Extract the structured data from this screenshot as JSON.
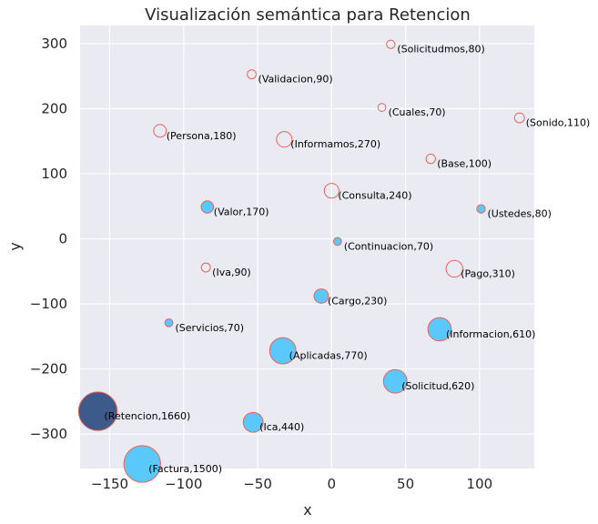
{
  "chart_data": {
    "type": "scatter",
    "title": "Visualización semántica para Retencion",
    "xlabel": "x",
    "ylabel": "y",
    "xlim": [
      -170,
      137
    ],
    "ylim": [
      -353,
      328
    ],
    "xticks": [
      -150,
      -100,
      -50,
      0,
      50,
      100
    ],
    "yticks": [
      -300,
      -200,
      -100,
      0,
      100,
      200,
      300
    ],
    "xtick_labels": [
      "−150",
      "−100",
      "−50",
      "0",
      "50",
      "100"
    ],
    "ytick_labels": [
      "−300",
      "−200",
      "−100",
      "0",
      "100",
      "200",
      "300"
    ],
    "grid": true,
    "background": "#EAEAF2",
    "colors": {
      "filled": "#5AC8FA",
      "highlight": "#3D5A8A",
      "edge": "#E8645A",
      "hollow": "none"
    },
    "points": [
      {
        "label": "(Solicitudmos,80)",
        "x": 40,
        "y": 299,
        "size": 80,
        "style": "hollow"
      },
      {
        "label": "(Validacion,90)",
        "x": -54,
        "y": 253,
        "size": 90,
        "style": "hollow"
      },
      {
        "label": "(Cuales,70)",
        "x": 34,
        "y": 202,
        "size": 70,
        "style": "hollow"
      },
      {
        "label": "(Sonido,110)",
        "x": 127,
        "y": 186,
        "size": 110,
        "style": "hollow"
      },
      {
        "label": "(Persona,180)",
        "x": -116,
        "y": 166,
        "size": 180,
        "style": "hollow"
      },
      {
        "label": "(Informamos,270)",
        "x": -32,
        "y": 153,
        "size": 270,
        "style": "hollow"
      },
      {
        "label": "(Base,100)",
        "x": 67,
        "y": 123,
        "size": 100,
        "style": "hollow"
      },
      {
        "label": "(Consulta,240)",
        "x": 0,
        "y": 74,
        "size": 240,
        "style": "hollow"
      },
      {
        "label": "(Valor,170)",
        "x": -84,
        "y": 49,
        "size": 170,
        "style": "filled"
      },
      {
        "label": "(Ustedes,80)",
        "x": 101,
        "y": 46,
        "size": 80,
        "style": "filled"
      },
      {
        "label": "(Continuacion,70)",
        "x": 4,
        "y": -4,
        "size": 70,
        "style": "filled"
      },
      {
        "label": "(Iva,90)",
        "x": -85,
        "y": -44,
        "size": 90,
        "style": "hollow"
      },
      {
        "label": "(Pago,310)",
        "x": 83,
        "y": -46,
        "size": 310,
        "style": "hollow"
      },
      {
        "label": "(Cargo,230)",
        "x": -7,
        "y": -88,
        "size": 230,
        "style": "filled"
      },
      {
        "label": "(Servicios,70)",
        "x": -110,
        "y": -129,
        "size": 70,
        "style": "filled"
      },
      {
        "label": "(Informacion,610)",
        "x": 73,
        "y": -139,
        "size": 610,
        "style": "filled"
      },
      {
        "label": "(Aplicadas,770)",
        "x": -33,
        "y": -172,
        "size": 770,
        "style": "filled"
      },
      {
        "label": "(Solicitud,620)",
        "x": 43,
        "y": -219,
        "size": 620,
        "style": "filled"
      },
      {
        "label": "(Retencion,1660)",
        "x": -158,
        "y": -265,
        "size": 1660,
        "style": "highlight"
      },
      {
        "label": "(Ica,440)",
        "x": -53,
        "y": -282,
        "size": 440,
        "style": "filled"
      },
      {
        "label": "(Factura,1500)",
        "x": -128,
        "y": -346,
        "size": 1500,
        "style": "filled"
      }
    ]
  }
}
